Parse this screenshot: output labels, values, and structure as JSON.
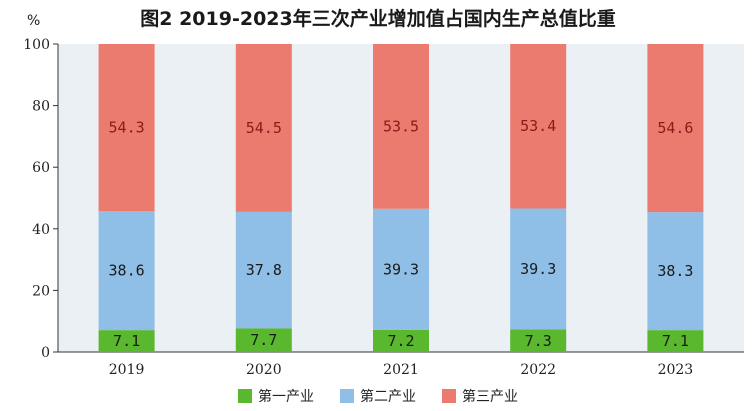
{
  "chart_data": {
    "type": "bar",
    "stacked": true,
    "title": "图2  2019-2023年三次产业增加值占国内生产总值比重",
    "ylabel": "%",
    "xlabel": "",
    "ylim": [
      0,
      100
    ],
    "yticks": [
      "0",
      "20",
      "40",
      "60",
      "80",
      "100"
    ],
    "categories": [
      "2019",
      "2020",
      "2021",
      "2022",
      "2023"
    ],
    "series": [
      {
        "name": "第一产业",
        "color": "#5ab82e",
        "labelColor": "#1a1a1a",
        "values": [
          7.1,
          7.7,
          7.2,
          7.3,
          7.1
        ],
        "labels": [
          "7.1",
          "7.7",
          "7.2",
          "7.3",
          "7.1"
        ]
      },
      {
        "name": "第二产业",
        "color": "#8fbfe7",
        "labelColor": "#1a1a1a",
        "values": [
          38.6,
          37.8,
          39.3,
          39.3,
          38.3
        ],
        "labels": [
          "38.6",
          "37.8",
          "39.3",
          "39.3",
          "38.3"
        ]
      },
      {
        "name": "第三产业",
        "color": "#eb7b6e",
        "labelColor": "#8b1a1a",
        "values": [
          54.3,
          54.5,
          53.5,
          53.4,
          54.6
        ],
        "labels": [
          "54.3",
          "54.5",
          "53.5",
          "53.4",
          "54.6"
        ]
      }
    ],
    "grid": false,
    "legend": "bottom",
    "plot_background": "#ebf0f5"
  }
}
